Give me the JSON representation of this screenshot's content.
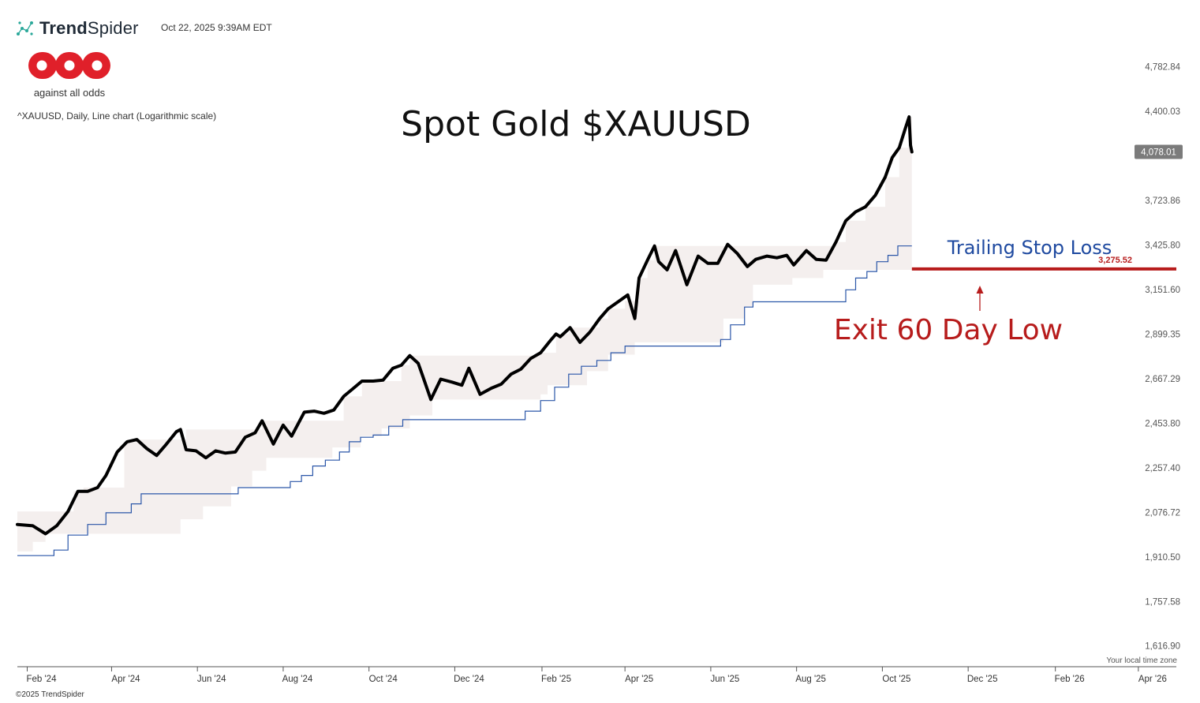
{
  "header": {
    "brand_name_bold": "Trend",
    "brand_name_light": "Spider",
    "timestamp": "Oct 22, 2025 9:39AM EDT",
    "logo_caption": "against all odds",
    "subtitle": "^XAUUSD, Daily, Line chart (Logarithmic scale)"
  },
  "footer": {
    "copyright": "©2025 TrendSpider",
    "timezone_note": "Your local time zone"
  },
  "colors": {
    "price_line": "#000000",
    "stop_line": "#2a56a8",
    "band_fill": "#f4efee",
    "annotation_red": "#b71c1c",
    "annotation_blue": "#1f4aa0",
    "last_price_badge": "#7b7b7b"
  },
  "chart_data": {
    "type": "line",
    "title": "Spot Gold $XAUUSD",
    "scale": "log",
    "ylim": [
      1560,
      4960
    ],
    "xlim": [
      "2024-01-25",
      "2026-04-28"
    ],
    "y_ticks": [
      "4,782.84",
      "4,400.03",
      "3,723.86",
      "3,425.80",
      "3,151.60",
      "2,899.35",
      "2,667.29",
      "2,453.80",
      "2,257.40",
      "2,076.72",
      "1,910.50",
      "1,757.58",
      "1,616.90"
    ],
    "y_tick_values": [
      4782.84,
      4400.03,
      3723.86,
      3425.8,
      3151.6,
      2899.35,
      2667.29,
      2453.8,
      2257.4,
      2076.72,
      1910.5,
      1757.58,
      1616.9
    ],
    "x_ticks": [
      {
        "label": "Feb '24",
        "date": "2024-02-01"
      },
      {
        "label": "Apr '24",
        "date": "2024-04-01"
      },
      {
        "label": "Jun '24",
        "date": "2024-06-01"
      },
      {
        "label": "Aug '24",
        "date": "2024-08-01"
      },
      {
        "label": "Oct '24",
        "date": "2024-10-01"
      },
      {
        "label": "Dec '24",
        "date": "2024-12-01"
      },
      {
        "label": "Feb '25",
        "date": "2025-02-01"
      },
      {
        "label": "Apr '25",
        "date": "2025-04-01"
      },
      {
        "label": "Jun '25",
        "date": "2025-06-01"
      },
      {
        "label": "Aug '25",
        "date": "2025-08-01"
      },
      {
        "label": "Oct '25",
        "date": "2025-10-01"
      },
      {
        "label": "Dec '25",
        "date": "2025-12-01"
      },
      {
        "label": "Feb '26",
        "date": "2026-02-01"
      },
      {
        "label": "Apr '26",
        "date": "2026-04-01"
      }
    ],
    "grid": false,
    "legend": "none",
    "series": [
      {
        "key": "price",
        "dates": [
          "2024-01-25",
          "2024-02-05",
          "2024-02-14",
          "2024-02-22",
          "2024-03-01",
          "2024-03-08",
          "2024-03-15",
          "2024-03-22",
          "2024-03-28",
          "2024-04-05",
          "2024-04-12",
          "2024-04-19",
          "2024-04-26",
          "2024-05-03",
          "2024-05-10",
          "2024-05-17",
          "2024-05-20",
          "2024-05-24",
          "2024-05-31",
          "2024-06-07",
          "2024-06-14",
          "2024-06-21",
          "2024-06-28",
          "2024-07-05",
          "2024-07-12",
          "2024-07-17",
          "2024-07-25",
          "2024-08-01",
          "2024-08-07",
          "2024-08-16",
          "2024-08-23",
          "2024-08-30",
          "2024-09-06",
          "2024-09-13",
          "2024-09-20",
          "2024-09-26",
          "2024-10-04",
          "2024-10-11",
          "2024-10-18",
          "2024-10-24",
          "2024-10-30",
          "2024-11-05",
          "2024-11-08",
          "2024-11-14",
          "2024-11-21",
          "2024-11-29",
          "2024-12-06",
          "2024-12-11",
          "2024-12-19",
          "2024-12-27",
          "2025-01-03",
          "2025-01-10",
          "2025-01-17",
          "2025-01-24",
          "2025-01-31",
          "2025-02-07",
          "2025-02-11",
          "2025-02-14",
          "2025-02-21",
          "2025-02-28",
          "2025-03-07",
          "2025-03-14",
          "2025-03-20",
          "2025-03-28",
          "2025-04-03",
          "2025-04-08",
          "2025-04-11",
          "2025-04-17",
          "2025-04-22",
          "2025-04-25",
          "2025-05-01",
          "2025-05-07",
          "2025-05-15",
          "2025-05-23",
          "2025-05-30",
          "2025-06-06",
          "2025-06-13",
          "2025-06-20",
          "2025-06-27",
          "2025-07-03",
          "2025-07-11",
          "2025-07-18",
          "2025-07-25",
          "2025-07-30",
          "2025-08-08",
          "2025-08-15",
          "2025-08-22",
          "2025-08-29",
          "2025-09-05",
          "2025-09-12",
          "2025-09-19",
          "2025-09-26",
          "2025-10-03",
          "2025-10-08",
          "2025-10-13",
          "2025-10-17",
          "2025-10-20",
          "2025-10-21",
          "2025-10-22"
        ],
        "values": [
          2030,
          2025,
          1995,
          2025,
          2080,
          2160,
          2160,
          2175,
          2225,
          2325,
          2370,
          2380,
          2340,
          2310,
          2360,
          2415,
          2425,
          2335,
          2330,
          2300,
          2330,
          2320,
          2325,
          2390,
          2410,
          2465,
          2360,
          2445,
          2395,
          2505,
          2510,
          2500,
          2515,
          2580,
          2620,
          2655,
          2655,
          2660,
          2720,
          2735,
          2785,
          2745,
          2685,
          2565,
          2665,
          2650,
          2635,
          2720,
          2590,
          2620,
          2640,
          2690,
          2715,
          2770,
          2800,
          2865,
          2900,
          2885,
          2935,
          2855,
          2910,
          2985,
          3040,
          3085,
          3120,
          2985,
          3220,
          3330,
          3420,
          3320,
          3270,
          3390,
          3180,
          3355,
          3310,
          3310,
          3430,
          3370,
          3290,
          3335,
          3355,
          3345,
          3360,
          3300,
          3390,
          3335,
          3330,
          3445,
          3585,
          3645,
          3680,
          3760,
          3890,
          4035,
          4110,
          4250,
          4355,
          4128,
          4078
        ]
      },
      {
        "key": "trailing_stop",
        "name": "Trailing Stop Loss",
        "dates": [
          "2024-01-25",
          "2024-02-13",
          "2024-02-20",
          "2024-03-01",
          "2024-03-08",
          "2024-03-15",
          "2024-03-28",
          "2024-04-08",
          "2024-04-15",
          "2024-04-22",
          "2024-05-01",
          "2024-06-01",
          "2024-06-30",
          "2024-07-31",
          "2024-08-06",
          "2024-08-14",
          "2024-08-22",
          "2024-08-31",
          "2024-09-10",
          "2024-09-17",
          "2024-09-25",
          "2024-10-04",
          "2024-10-15",
          "2024-10-25",
          "2024-11-05",
          "2025-01-10",
          "2025-01-20",
          "2025-01-31",
          "2025-02-10",
          "2025-02-20",
          "2025-03-01",
          "2025-03-12",
          "2025-03-22",
          "2025-04-01",
          "2025-04-10",
          "2025-05-01",
          "2025-05-20",
          "2025-06-01",
          "2025-06-08",
          "2025-06-15",
          "2025-06-25",
          "2025-07-01",
          "2025-08-01",
          "2025-08-28",
          "2025-09-05",
          "2025-09-12",
          "2025-09-20",
          "2025-09-27",
          "2025-10-05",
          "2025-10-12",
          "2025-10-22"
        ],
        "values": [
          1915,
          1915,
          1935,
          1990,
          1990,
          2030,
          2075,
          2075,
          2110,
          2150,
          2150,
          2150,
          2175,
          2175,
          2200,
          2225,
          2265,
          2290,
          2325,
          2370,
          2390,
          2400,
          2440,
          2470,
          2470,
          2470,
          2510,
          2560,
          2625,
          2690,
          2730,
          2760,
          2800,
          2835,
          2835,
          2835,
          2835,
          2835,
          2870,
          2950,
          3050,
          3080,
          3080,
          3080,
          3150,
          3220,
          3260,
          3320,
          3360,
          3420,
          3420
        ]
      }
    ],
    "band": {
      "upper": {
        "dates": [
          "2024-01-25",
          "2024-02-14",
          "2024-02-28",
          "2024-03-05",
          "2024-03-12",
          "2024-03-15",
          "2024-04-10",
          "2024-04-12",
          "2024-05-17",
          "2024-05-24",
          "2024-06-04",
          "2024-07-01",
          "2024-07-17",
          "2024-09-13",
          "2024-09-26",
          "2024-10-24",
          "2024-10-30",
          "2025-01-20",
          "2025-01-30",
          "2025-02-11",
          "2025-02-20",
          "2025-03-07",
          "2025-03-14",
          "2025-03-20",
          "2025-04-01",
          "2025-04-11",
          "2025-04-17",
          "2025-04-22",
          "2025-08-29",
          "2025-09-05",
          "2025-09-19",
          "2025-10-03",
          "2025-10-13",
          "2025-10-20",
          "2025-10-22"
        ],
        "values": [
          2080,
          2080,
          2080,
          2160,
          2175,
          2175,
          2370,
          2380,
          2380,
          2425,
          2425,
          2425,
          2465,
          2580,
          2655,
          2735,
          2785,
          2785,
          2800,
          2900,
          2935,
          2935,
          2985,
          3040,
          3085,
          3220,
          3330,
          3420,
          3445,
          3585,
          3680,
          3890,
          4110,
          4355,
          4355
        ]
      },
      "lower": {
        "dates": [
          "2024-01-25",
          "2024-02-05",
          "2024-02-14",
          "2024-03-15",
          "2024-03-28",
          "2024-04-20",
          "2024-05-20",
          "2024-06-05",
          "2024-06-25",
          "2024-07-10",
          "2024-07-20",
          "2024-08-25",
          "2024-09-05",
          "2024-09-25",
          "2024-10-10",
          "2024-10-30",
          "2024-11-15",
          "2024-11-26",
          "2025-01-15",
          "2025-01-31",
          "2025-02-05",
          "2025-02-20",
          "2025-03-05",
          "2025-03-20",
          "2025-04-08",
          "2025-05-20",
          "2025-06-10",
          "2025-06-25",
          "2025-07-01",
          "2025-07-15",
          "2025-07-29",
          "2025-08-20",
          "2025-09-05",
          "2025-09-19",
          "2025-10-03",
          "2025-10-22"
        ],
        "values": [
          1930,
          1965,
          1995,
          1995,
          1995,
          1995,
          2050,
          2100,
          2180,
          2245,
          2300,
          2300,
          2345,
          2395,
          2430,
          2490,
          2565,
          2565,
          2565,
          2590,
          2635,
          2635,
          2705,
          2790,
          2855,
          2855,
          2985,
          3050,
          3180,
          3180,
          3220,
          3270,
          3270,
          3270,
          3270,
          3270
        ]
      }
    },
    "last_price": {
      "value": 4078.01,
      "label": "4,078.01"
    },
    "stop_level": {
      "value": 3275.52,
      "label": "3,275.52",
      "from": "2025-10-22",
      "to": "2026-04-28"
    },
    "annotations": [
      {
        "key": "stop_label",
        "text": "Trailing Stop Loss"
      },
      {
        "key": "exit_label",
        "text": "Exit 60 Day Low"
      }
    ]
  }
}
